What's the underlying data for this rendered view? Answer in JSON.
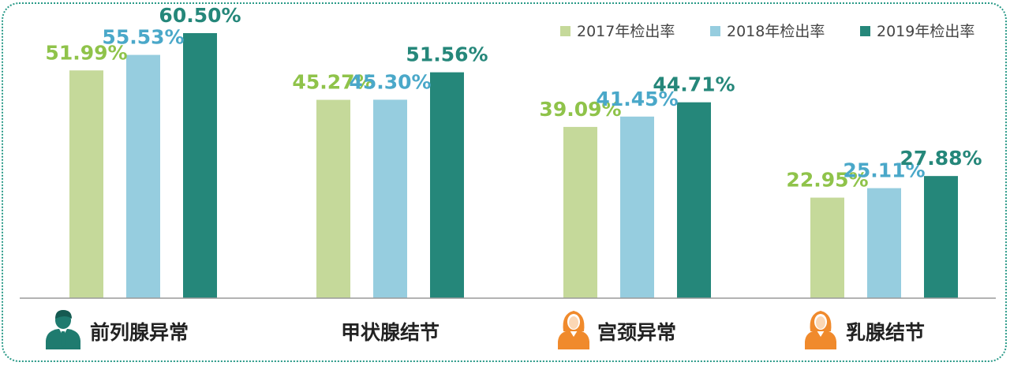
{
  "chart_data": {
    "type": "bar",
    "categories": [
      "前列腺异常",
      "甲状腺结节",
      "宫颈异常",
      "乳腺结节"
    ],
    "category_icons": [
      "male-person-icon",
      "",
      "female-person-icon",
      "female-person-icon"
    ],
    "series": [
      {
        "name": "2017年检出率",
        "color": "#c5d99a",
        "label_color": "#8fc34a",
        "values": [
          51.99,
          45.27,
          39.09,
          22.95
        ]
      },
      {
        "name": "2018年检出率",
        "color": "#96cddf",
        "label_color": "#4aa8c9",
        "values": [
          55.53,
          45.3,
          41.45,
          25.11
        ]
      },
      {
        "name": "2019年检出率",
        "color": "#25877a",
        "label_color": "#25877a",
        "values": [
          60.5,
          51.56,
          44.71,
          27.88
        ]
      }
    ],
    "value_format": "percent_2dp",
    "ylim": [
      0,
      65
    ],
    "grid": false,
    "legend_position": "top-right",
    "title": "",
    "xlabel": "",
    "ylabel": ""
  }
}
